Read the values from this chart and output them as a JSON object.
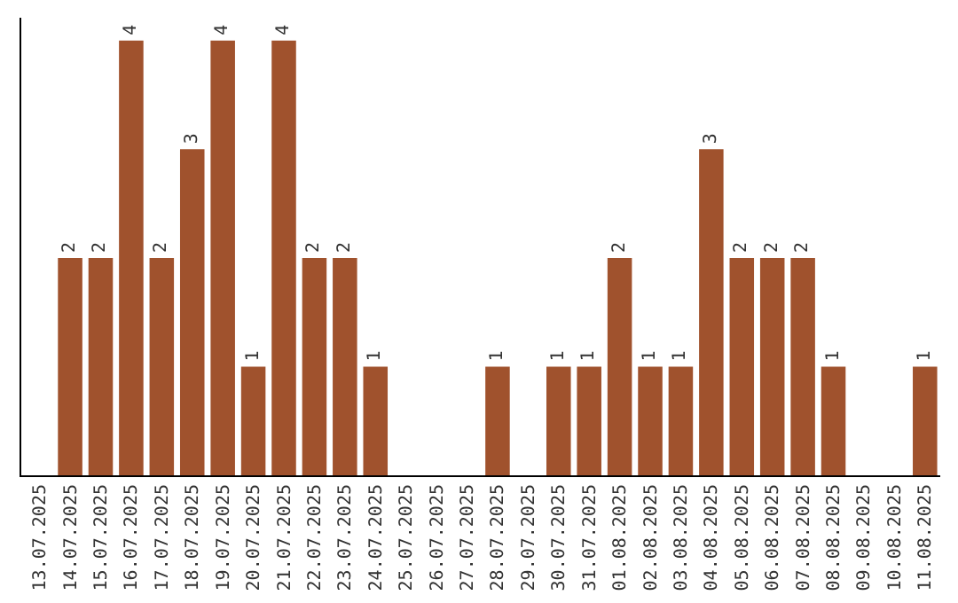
{
  "chart_data": {
    "type": "bar",
    "categories": [
      "13.07.2025",
      "14.07.2025",
      "15.07.2025",
      "16.07.2025",
      "17.07.2025",
      "18.07.2025",
      "19.07.2025",
      "20.07.2025",
      "21.07.2025",
      "22.07.2025",
      "23.07.2025",
      "24.07.2025",
      "25.07.2025",
      "26.07.2025",
      "27.07.2025",
      "28.07.2025",
      "29.07.2025",
      "30.07.2025",
      "31.07.2025",
      "01.08.2025",
      "02.08.2025",
      "03.08.2025",
      "04.08.2025",
      "05.08.2025",
      "06.08.2025",
      "07.08.2025",
      "08.08.2025",
      "09.08.2025",
      "10.08.2025",
      "11.08.2025"
    ],
    "values": [
      0,
      2,
      2,
      4,
      2,
      3,
      4,
      1,
      4,
      2,
      2,
      1,
      0,
      0,
      0,
      1,
      0,
      1,
      1,
      2,
      1,
      1,
      3,
      2,
      2,
      2,
      1,
      0,
      0,
      1
    ],
    "value_labels": [
      null,
      "2",
      "2",
      "4",
      "2",
      "3",
      "4",
      "1",
      "4",
      "2",
      "2",
      "1",
      null,
      null,
      null,
      "1",
      null,
      "1",
      "1",
      "2",
      "1",
      "1",
      "3",
      "2",
      "2",
      "2",
      "1",
      null,
      null,
      "1"
    ],
    "color": "#a0522d",
    "tick_labels": "x",
    "grid": false,
    "legend": false
  }
}
